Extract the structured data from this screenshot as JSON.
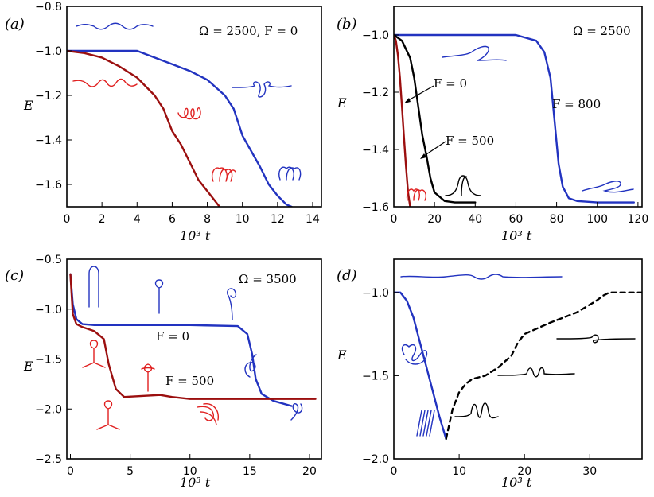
{
  "colors": {
    "blue": "#2233c0",
    "darkred": "#9b0f0f",
    "red": "#e02020",
    "black": "#000000"
  },
  "chart_data": [
    {
      "panel": "(a)",
      "type": "line",
      "annotation": "Ω = 2500, F = 0",
      "xlabel": "10³ t",
      "ylabel": "E",
      "xlim": [
        0,
        14.5
      ],
      "ylim": [
        -1.7,
        -0.8
      ],
      "xticks": [
        0,
        2,
        4,
        6,
        8,
        10,
        12,
        14
      ],
      "yticks": [
        -0.8,
        -1.0,
        -1.2,
        -1.4,
        -1.6
      ],
      "series": [
        {
          "color": "blue",
          "x": [
            0,
            1,
            2,
            3,
            4,
            5,
            6,
            7,
            8,
            9,
            9.5,
            10,
            10.5,
            11,
            11.5,
            12,
            12.5,
            12.8
          ],
          "y": [
            -1.0,
            -1.0,
            -1.0,
            -1.0,
            -1.0,
            -1.03,
            -1.06,
            -1.09,
            -1.13,
            -1.2,
            -1.26,
            -1.38,
            -1.45,
            -1.52,
            -1.6,
            -1.65,
            -1.69,
            -1.7
          ]
        },
        {
          "color": "darkred",
          "x": [
            0,
            1,
            2,
            3,
            4,
            5,
            5.5,
            6,
            6.5,
            7,
            7.5,
            8,
            8.5,
            8.7
          ],
          "y": [
            -1.0,
            -1.01,
            -1.03,
            -1.07,
            -1.12,
            -1.2,
            -1.26,
            -1.36,
            -1.42,
            -1.5,
            -1.58,
            -1.63,
            -1.68,
            -1.7
          ]
        }
      ]
    },
    {
      "panel": "(b)",
      "type": "line",
      "annotation": "Ω = 2500",
      "xlabel": "10³ t",
      "ylabel": "E",
      "xlim": [
        0,
        122
      ],
      "ylim": [
        -1.6,
        -0.9
      ],
      "xticks": [
        0,
        20,
        40,
        60,
        80,
        100,
        120
      ],
      "yticks": [
        -1.0,
        -1.2,
        -1.4,
        -1.6
      ],
      "labels": [
        "F = 0",
        "F = 500",
        "F = 800"
      ],
      "series": [
        {
          "name": "F = 800",
          "color": "blue",
          "x": [
            0,
            10,
            40,
            60,
            70,
            74,
            77,
            79,
            81,
            83,
            86,
            90,
            100,
            118
          ],
          "y": [
            -1.0,
            -1.0,
            -1.0,
            -1.0,
            -1.02,
            -1.06,
            -1.15,
            -1.3,
            -1.45,
            -1.53,
            -1.57,
            -1.58,
            -1.585,
            -1.585
          ]
        },
        {
          "name": "F = 500",
          "color": "black",
          "x": [
            0,
            4,
            8,
            10,
            12,
            14,
            16,
            18,
            20,
            25,
            30,
            40
          ],
          "y": [
            -1.0,
            -1.02,
            -1.08,
            -1.15,
            -1.25,
            -1.35,
            -1.42,
            -1.5,
            -1.55,
            -1.58,
            -1.585,
            -1.585
          ]
        },
        {
          "name": "F = 0",
          "color": "darkred",
          "x": [
            0,
            1,
            2,
            3,
            4,
            5,
            6,
            7,
            8
          ],
          "y": [
            -1.0,
            -1.02,
            -1.07,
            -1.15,
            -1.25,
            -1.36,
            -1.46,
            -1.55,
            -1.6
          ]
        }
      ]
    },
    {
      "panel": "(c)",
      "type": "line",
      "annotation": "Ω = 3500",
      "xlabel": "10³ t",
      "ylabel": "E",
      "xlim": [
        -0.3,
        21
      ],
      "ylim": [
        -2.5,
        -0.5
      ],
      "xticks": [
        0,
        5,
        10,
        15,
        20
      ],
      "yticks": [
        -0.5,
        -1.0,
        -1.5,
        -2.0,
        -2.5
      ],
      "labels": [
        "F = 0",
        "F = 500"
      ],
      "series": [
        {
          "name": "F = 0",
          "color": "blue",
          "x": [
            0,
            0.2,
            0.5,
            1,
            2,
            5,
            10,
            14,
            14.8,
            15.2,
            15.5,
            16,
            17,
            18.5
          ],
          "y": [
            -0.65,
            -0.95,
            -1.1,
            -1.15,
            -1.16,
            -1.16,
            -1.16,
            -1.17,
            -1.25,
            -1.45,
            -1.7,
            -1.85,
            -1.92,
            -1.97
          ]
        },
        {
          "name": "F = 500",
          "color": "darkred",
          "x": [
            0,
            0.2,
            0.5,
            1,
            2,
            2.8,
            3.2,
            3.8,
            4.5,
            6,
            7.5,
            8.5,
            10,
            15,
            20.5
          ],
          "y": [
            -0.65,
            -1.05,
            -1.15,
            -1.18,
            -1.22,
            -1.3,
            -1.55,
            -1.8,
            -1.88,
            -1.87,
            -1.86,
            -1.88,
            -1.9,
            -1.9,
            -1.9
          ]
        }
      ]
    },
    {
      "panel": "(d)",
      "type": "line",
      "xlabel": "10³ t",
      "ylabel": "E",
      "xlim": [
        0,
        38
      ],
      "ylim": [
        -2.0,
        -0.8
      ],
      "xticks": [
        0,
        10,
        20,
        30
      ],
      "yticks": [
        -1.0,
        -1.5,
        -2.0
      ],
      "series": [
        {
          "color": "blue",
          "style": "solid",
          "x": [
            0,
            1,
            2,
            3,
            4,
            5,
            6,
            7,
            8
          ],
          "y": [
            -1.0,
            -1.0,
            -1.05,
            -1.15,
            -1.3,
            -1.45,
            -1.6,
            -1.75,
            -1.88
          ]
        },
        {
          "color": "black",
          "style": "dashed",
          "x": [
            8,
            9,
            10,
            11,
            12,
            14,
            16,
            18,
            19,
            20,
            24,
            28,
            31,
            32,
            33,
            38
          ],
          "y": [
            -1.88,
            -1.7,
            -1.6,
            -1.55,
            -1.52,
            -1.5,
            -1.45,
            -1.38,
            -1.3,
            -1.25,
            -1.18,
            -1.12,
            -1.05,
            -1.02,
            -1.0,
            -1.0
          ]
        }
      ]
    }
  ]
}
